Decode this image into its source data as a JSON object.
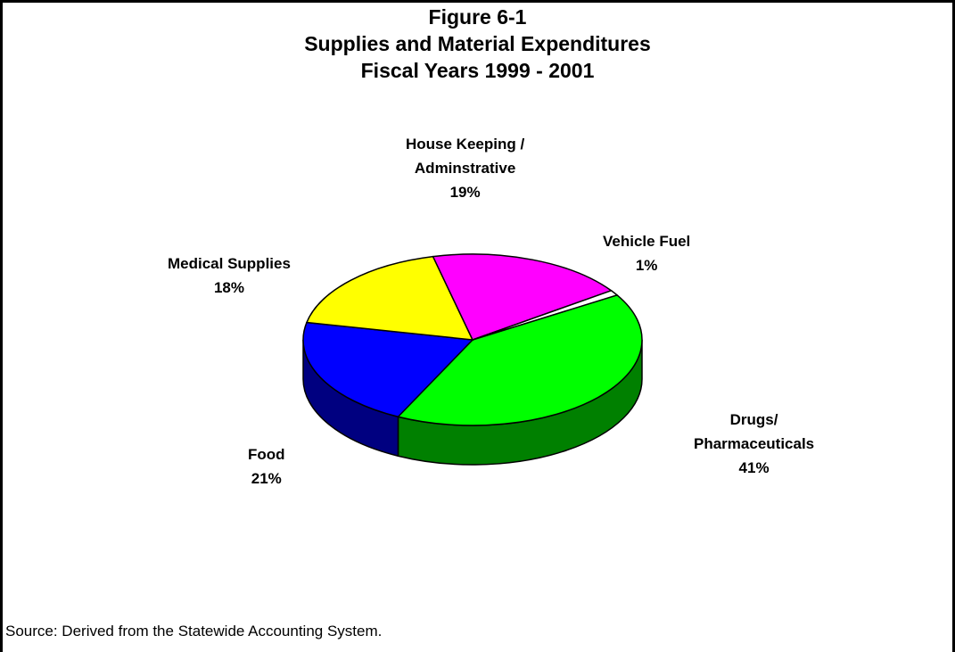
{
  "figure": {
    "title_line1": "Figure 6-1",
    "title_line2": "Supplies and Material Expenditures",
    "title_line3": "Fiscal Years 1999 - 2001"
  },
  "source": "Source:  Derived from the Statewide Accounting System.",
  "chart_data": {
    "type": "pie",
    "title": "Figure 6-1 Supplies and Material Expenditures Fiscal Years 1999 - 2001",
    "three_d": true,
    "slices": [
      {
        "name_line1": "Drugs/",
        "name_line2": "Pharmaceuticals",
        "pct_label": "41%",
        "value": 41,
        "color": "#00ff00",
        "side_color": "#008000"
      },
      {
        "name_line1": "Food",
        "name_line2": "",
        "pct_label": "21%",
        "value": 21,
        "color": "#0000ff",
        "side_color": "#000080"
      },
      {
        "name_line1": "Medical Supplies",
        "name_line2": "",
        "pct_label": "18%",
        "value": 18,
        "color": "#ffff00",
        "side_color": "#808000"
      },
      {
        "name_line1": "House Keeping /",
        "name_line2": "Adminstrative",
        "pct_label": "19%",
        "value": 19,
        "color": "#ff00ff",
        "side_color": "#800080"
      },
      {
        "name_line1": "Vehicle Fuel",
        "name_line2": "",
        "pct_label": "1%",
        "value": 1,
        "color": "#ffffff",
        "side_color": "#ffffff"
      }
    ]
  }
}
